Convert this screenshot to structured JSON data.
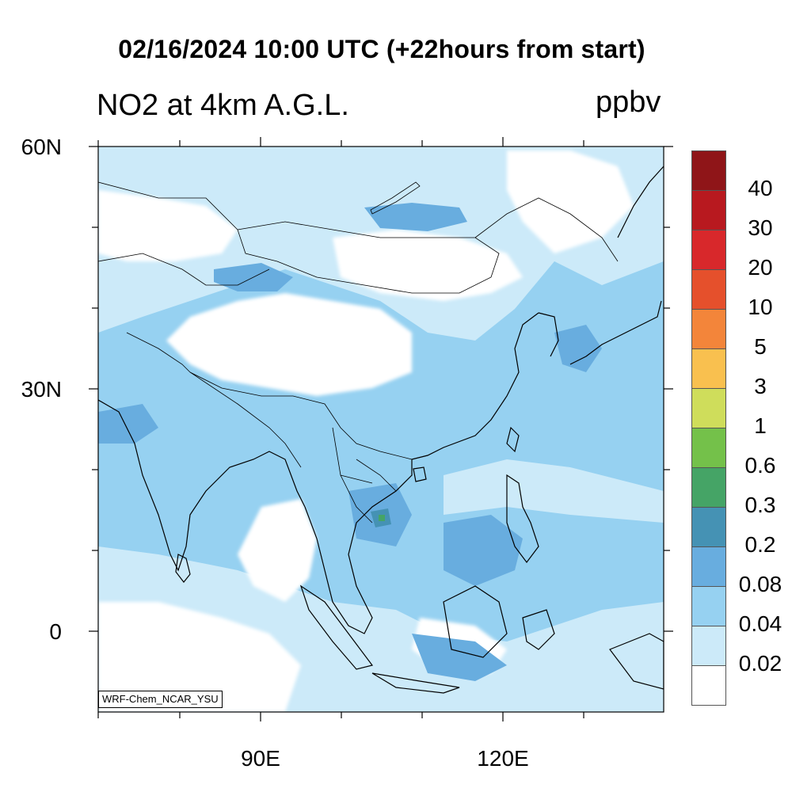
{
  "title": "02/16/2024 10:00 UTC (+22hours from start)",
  "subtitle": "NO2 at 4km A.G.L.",
  "units": "ppbv",
  "credit": "WRF-Chem_NCAR_YSU",
  "lat_labels": [
    "60N",
    "30N",
    "0"
  ],
  "lon_labels": [
    "90E",
    "120E"
  ],
  "legend": {
    "levels": [
      "40",
      "30",
      "20",
      "10",
      "5",
      "3",
      "1",
      "0.6",
      "0.3",
      "0.2",
      "0.08",
      "0.04",
      "0.02"
    ],
    "colors": [
      "#8f1518",
      "#b8191f",
      "#d8282b",
      "#e5502c",
      "#f3853a",
      "#f9c04f",
      "#cfdd5b",
      "#74c14a",
      "#45a466",
      "#4592b4",
      "#68addf",
      "#96d1f1",
      "#cceaf9",
      "#ffffff"
    ]
  },
  "map_colors": {
    "land_white": "#ffffff",
    "light": "#cceaf9",
    "mid": "#96d1f1",
    "dark": "#68addf",
    "darker": "#4592b4",
    "green": "#45a466"
  }
}
